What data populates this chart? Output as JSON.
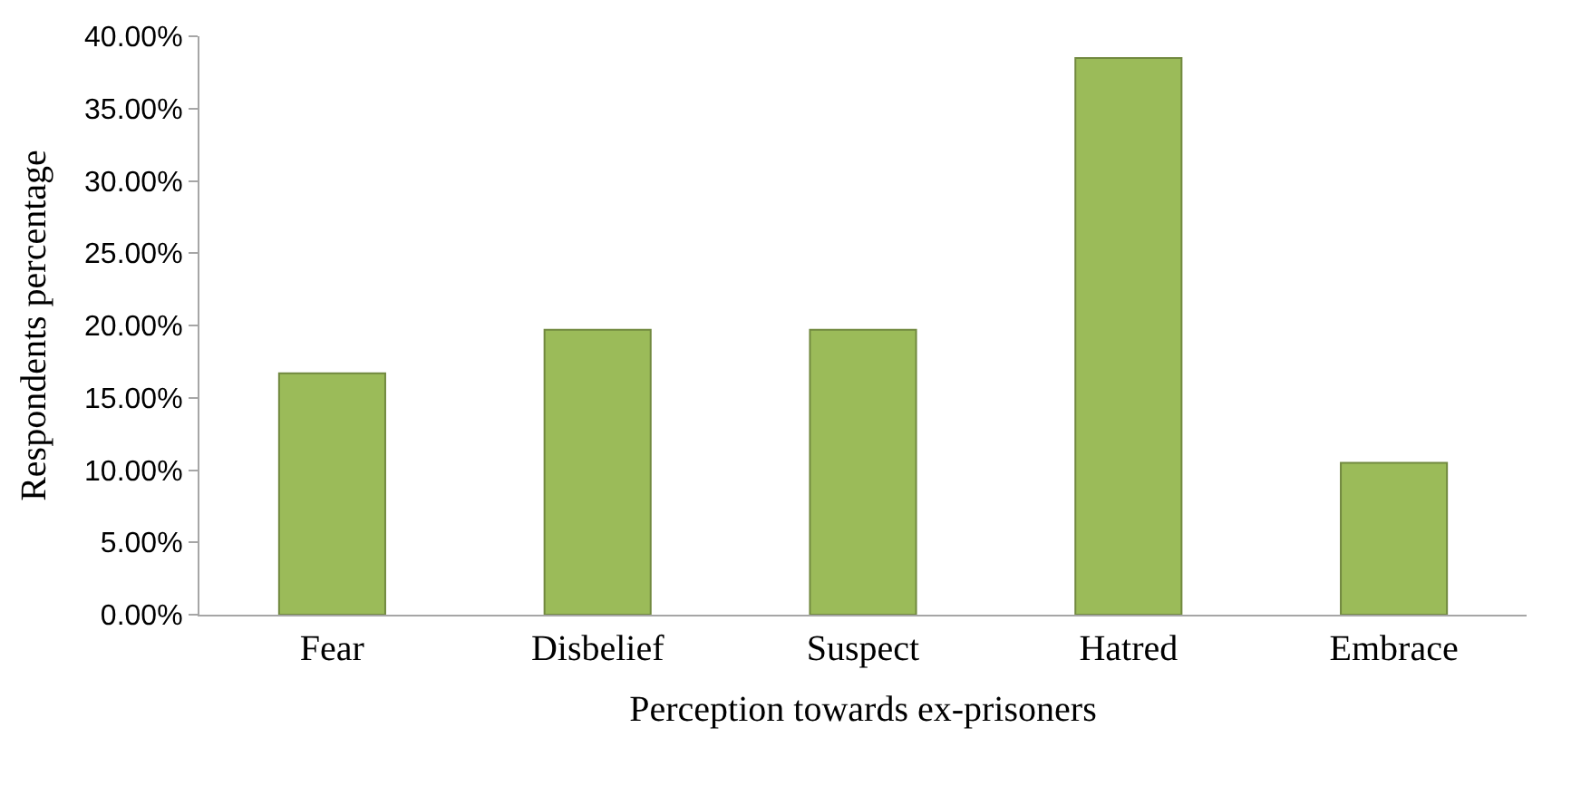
{
  "chart_data": {
    "type": "bar",
    "xlabel": "Perception towards ex-prisoners",
    "ylabel": "Respondents percentage",
    "categories": [
      "Fear",
      "Disbelief",
      "Suspect",
      "Hatred",
      "Embrace"
    ],
    "values": [
      16.7,
      19.7,
      19.7,
      38.5,
      10.5
    ],
    "color": "#9bbb59",
    "ylim": [
      0,
      40
    ],
    "yticks": [
      {
        "value": 0,
        "label": "0.00%"
      },
      {
        "value": 5,
        "label": "5.00%"
      },
      {
        "value": 10,
        "label": "10.00%"
      },
      {
        "value": 15,
        "label": "15.00%"
      },
      {
        "value": 20,
        "label": "20.00%"
      },
      {
        "value": 25,
        "label": "25.00%"
      },
      {
        "value": 30,
        "label": "30.00%"
      },
      {
        "value": 35,
        "label": "35.00%"
      },
      {
        "value": 40,
        "label": "40.00%"
      }
    ],
    "relative": false
  }
}
